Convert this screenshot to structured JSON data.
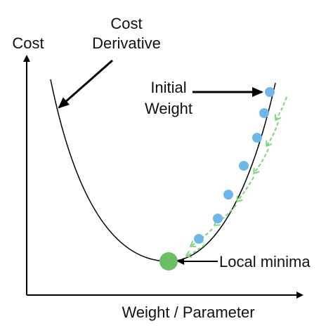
{
  "axes": {
    "y_label": "Cost",
    "x_label": "Weight / Parameter"
  },
  "annotations": [
    {
      "lines": [
        "Cost",
        "Derivative"
      ]
    },
    {
      "lines": [
        "Initial",
        "Weight"
      ]
    },
    {
      "lines": [
        "Local minima"
      ]
    }
  ]
}
